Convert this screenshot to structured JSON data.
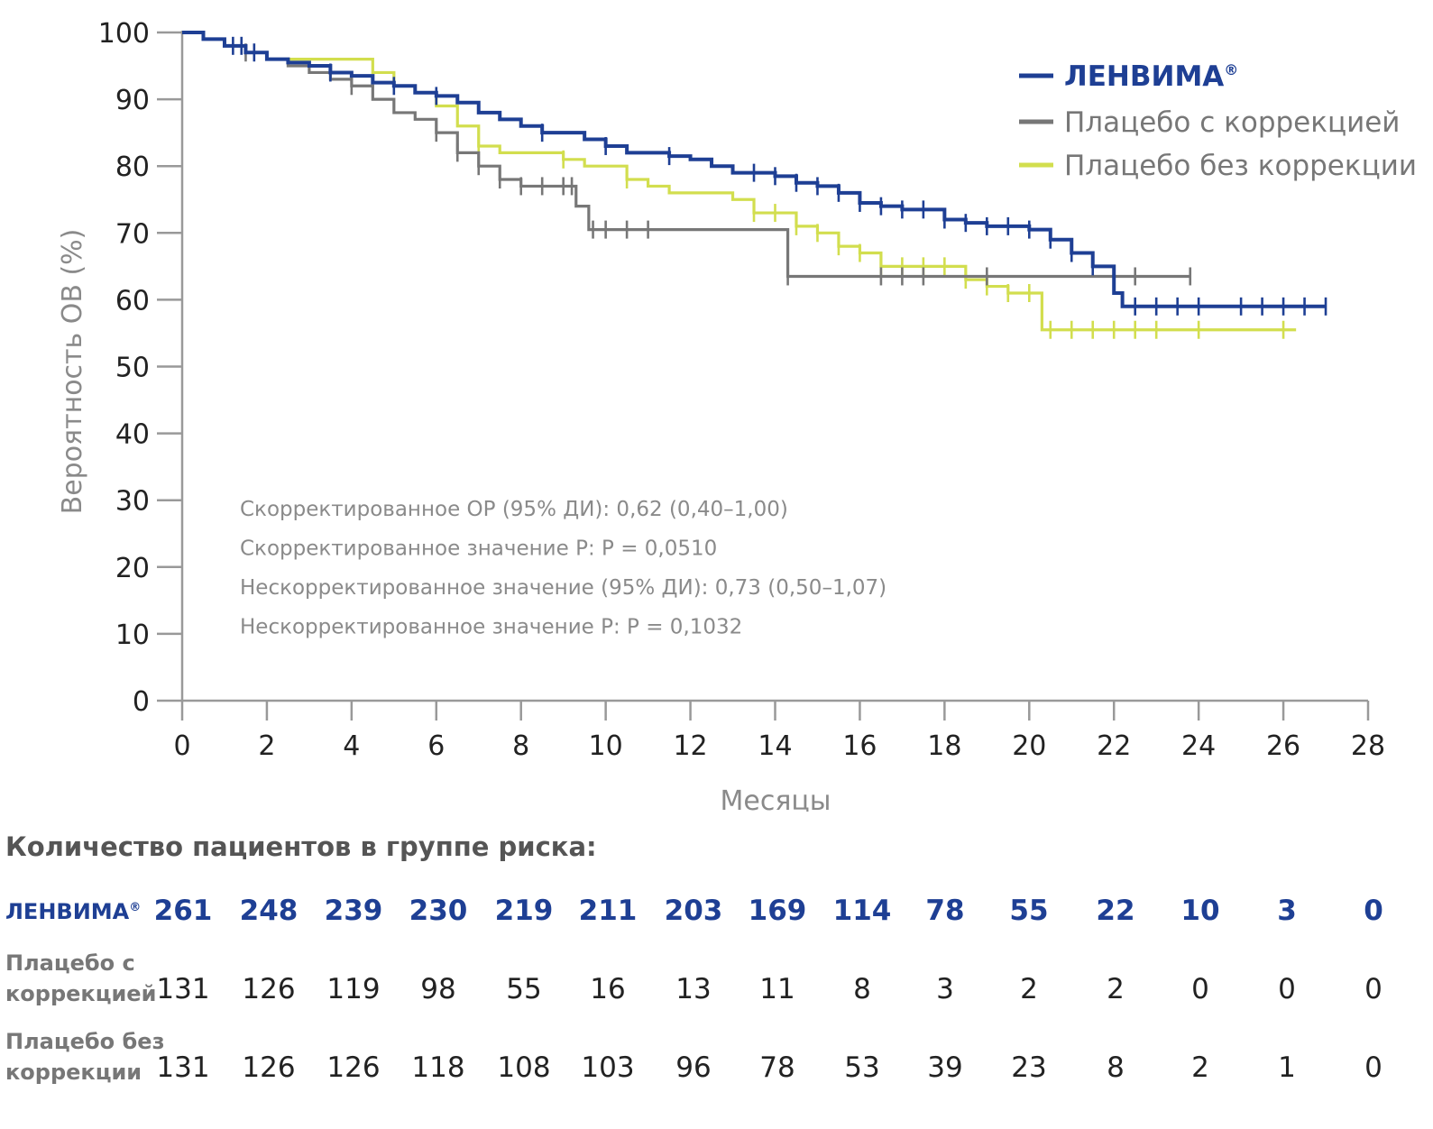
{
  "chart_data": {
    "type": "line",
    "subtype": "kaplan-meier",
    "xlabel": "Месяцы",
    "ylabel": "Вероятность ОВ  (%)",
    "xlim": [
      0,
      28
    ],
    "ylim": [
      0,
      100
    ],
    "x_ticks": [
      "0",
      "2",
      "4",
      "6",
      "8",
      "10",
      "12",
      "14",
      "16",
      "18",
      "20",
      "22",
      "24",
      "26",
      "28"
    ],
    "y_ticks": [
      "0",
      "10",
      "20",
      "30",
      "40",
      "50",
      "60",
      "70",
      "80",
      "90",
      "100"
    ],
    "legend": [
      {
        "label": "ЛЕНВИМА",
        "mark": "®",
        "color": "#1e3f94"
      },
      {
        "label": "Плацебо с коррекцией",
        "color": "#777777"
      },
      {
        "label": "Плацебо без коррекции",
        "color": "#d2de4e"
      }
    ],
    "annotations": [
      "Скорректированное ОР (95% ДИ): 0,62 (0,40–1,00)",
      "Скорректированное значение P: P = 0,0510",
      "Нескорректированное значение (95% ДИ): 0,73 (0,50–1,07)",
      "Нескорректированное значение P: P = 0,1032"
    ],
    "series": [
      {
        "name": "Плацебо без коррекции",
        "color": "#d2de4e",
        "x": [
          0,
          0.5,
          1,
          1.5,
          2,
          2.5,
          3,
          3.5,
          4,
          4.5,
          5,
          5.5,
          6,
          6.5,
          7,
          7.5,
          8,
          8.5,
          9,
          9.5,
          10,
          10.5,
          11,
          11.5,
          12,
          12.5,
          13,
          13.5,
          14,
          14.5,
          15,
          15.5,
          16,
          16.5,
          17,
          17.5,
          18,
          18.5,
          19,
          19.5,
          20,
          20.3,
          21,
          22,
          23,
          24,
          25,
          26,
          26.3
        ],
        "y": [
          100,
          99,
          98,
          97,
          96,
          96,
          96,
          96,
          96,
          94,
          92,
          91,
          89,
          86,
          83,
          82,
          82,
          82,
          81,
          80,
          80,
          78,
          77,
          76,
          76,
          76,
          75,
          73,
          73,
          71,
          70,
          68,
          67,
          65,
          65,
          65,
          65,
          63,
          62,
          61,
          61,
          55.5,
          55.5,
          55.5,
          55.5,
          55.5,
          55.5,
          55.5,
          55.5
        ],
        "censor_x": [
          7,
          9,
          10.5,
          13.5,
          14,
          14.5,
          15,
          15.5,
          16,
          16.5,
          17,
          17.5,
          18,
          18.5,
          19,
          19.5,
          20,
          20.5,
          21,
          21.5,
          22,
          22.5,
          23,
          24,
          26
        ]
      },
      {
        "name": "Плацебо с коррекцией",
        "color": "#777777",
        "x": [
          0,
          0.5,
          1,
          1.5,
          2,
          2.5,
          3,
          3.5,
          4,
          4.5,
          5,
          5.5,
          6,
          6.5,
          7,
          7.5,
          8,
          8.5,
          9,
          9.3,
          9.6,
          10,
          11,
          12,
          13,
          14,
          14.3,
          15,
          16,
          17,
          18,
          19,
          20,
          21,
          22,
          23,
          23.8
        ],
        "y": [
          100,
          99,
          98,
          97,
          96,
          95,
          94,
          93,
          92,
          90,
          88,
          87,
          85,
          82,
          80,
          78,
          77,
          77,
          77,
          74,
          70.5,
          70.5,
          70.5,
          70.5,
          70.5,
          70.5,
          63.5,
          63.5,
          63.5,
          63.5,
          63.5,
          63.5,
          63.5,
          63.5,
          63.5,
          63.5,
          63.5
        ],
        "censor_x": [
          1.5,
          4,
          6,
          6.5,
          7,
          7.5,
          8,
          8.5,
          9,
          9.2,
          9.7,
          10,
          10.5,
          11,
          14.3,
          16.5,
          17,
          17.5,
          19,
          22.5,
          23.8
        ]
      },
      {
        "name": "ЛЕНВИМА",
        "color": "#1e3f94",
        "x": [
          0,
          0.5,
          1,
          1.5,
          2,
          2.5,
          3,
          3.5,
          4,
          4.5,
          5,
          5.5,
          6,
          6.5,
          7,
          7.5,
          8,
          8.5,
          9,
          9.5,
          10,
          10.5,
          11,
          11.5,
          12,
          12.5,
          13,
          13.5,
          14,
          14.5,
          15,
          15.5,
          16,
          16.5,
          17,
          17.5,
          18,
          18.5,
          19,
          19.5,
          20,
          20.5,
          21,
          21.5,
          22,
          22.2,
          23,
          24,
          25,
          26,
          27
        ],
        "y": [
          100,
          99,
          98,
          97,
          96,
          95.5,
          95,
          94,
          93.5,
          92.5,
          92,
          91,
          90.5,
          89.5,
          88,
          87,
          86,
          85,
          85,
          84,
          83,
          82,
          82,
          81.5,
          81,
          80,
          79,
          79,
          78.5,
          77.5,
          77,
          76,
          74.5,
          74,
          73.5,
          73.5,
          72,
          71.5,
          71,
          71,
          70.5,
          69,
          67,
          65,
          61,
          59,
          59,
          59,
          59,
          59,
          59
        ],
        "censor_x": [
          1.2,
          1.4,
          1.7,
          3.5,
          5,
          6,
          8.5,
          10,
          11.5,
          13.5,
          14,
          14.5,
          15,
          15.5,
          16,
          16.5,
          17,
          17.5,
          18,
          18.5,
          19,
          19.5,
          20,
          20.5,
          21,
          21.5,
          22.5,
          23,
          23.5,
          24,
          25,
          25.5,
          26,
          26.5,
          27
        ]
      }
    ]
  },
  "risk_table": {
    "title": "Количество пациентов в группе риска:",
    "rows": [
      {
        "label_lines": [
          "ЛЕНВИМА"
        ],
        "mark": "®",
        "style": "lenvima",
        "values": [
          "261",
          "248",
          "239",
          "230",
          "219",
          "211",
          "203",
          "169",
          "114",
          "78",
          "55",
          "22",
          "10",
          "3",
          "0"
        ]
      },
      {
        "label_lines": [
          "Плацебо с",
          "коррекцией"
        ],
        "style": "gray",
        "values": [
          "131",
          "126",
          "119",
          "98",
          "55",
          "16",
          "13",
          "11",
          "8",
          "3",
          "2",
          "2",
          "0",
          "0",
          "0"
        ]
      },
      {
        "label_lines": [
          "Плацебо без",
          "коррекции"
        ],
        "style": "gray",
        "values": [
          "131",
          "126",
          "126",
          "118",
          "108",
          "103",
          "96",
          "78",
          "53",
          "39",
          "23",
          "8",
          "2",
          "1",
          "0"
        ]
      }
    ]
  }
}
